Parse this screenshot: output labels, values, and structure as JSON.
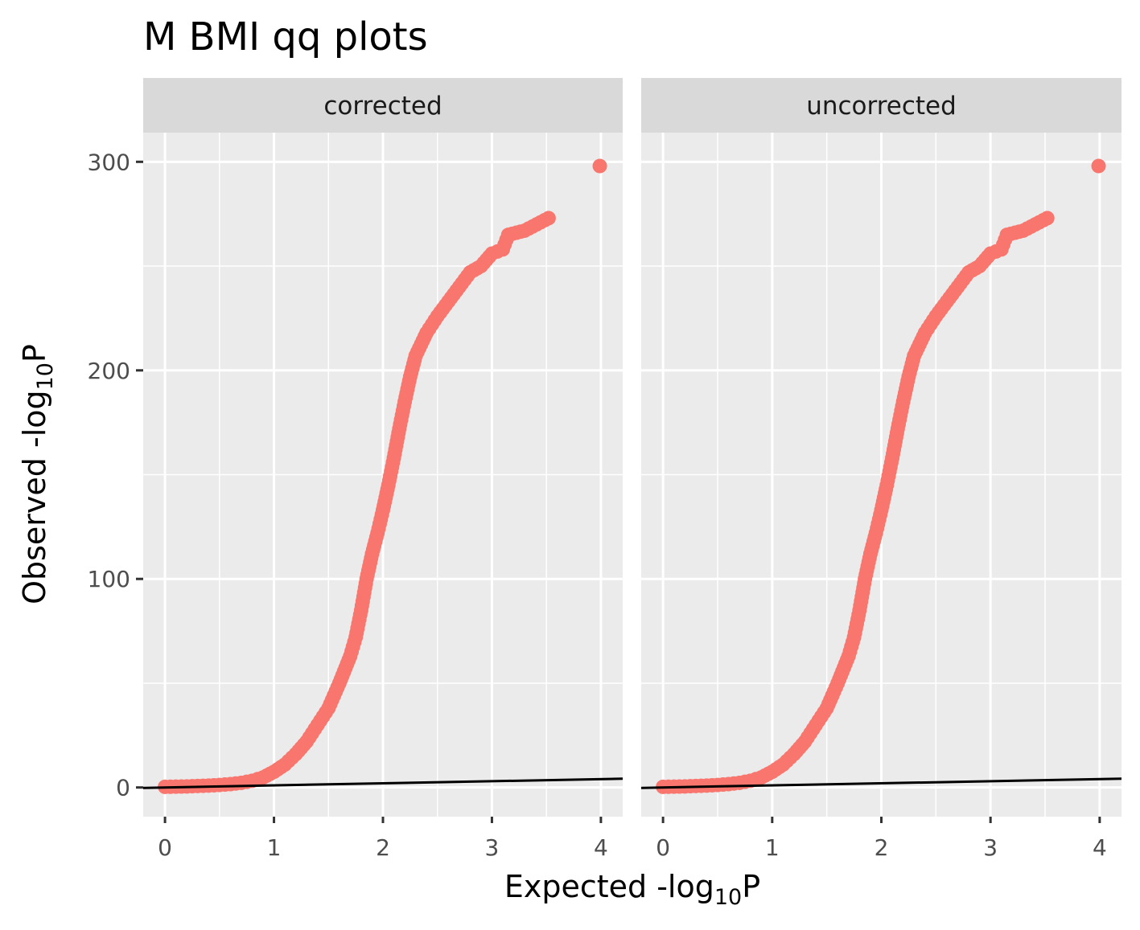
{
  "chart_data": {
    "type": "scatter",
    "title": "M BMI qq plots",
    "xlabel": {
      "main": "Expected -log",
      "sub": "10",
      "tail": "P"
    },
    "ylabel": {
      "main": "Observed -log",
      "sub": "10",
      "tail": "P"
    },
    "xlim": [
      -0.2,
      4.2
    ],
    "ylim": [
      -14,
      314
    ],
    "x_ticks": [
      0,
      1,
      2,
      3,
      4
    ],
    "x_tick_labels": [
      "0",
      "1",
      "2",
      "3",
      "4"
    ],
    "y_ticks": [
      0,
      100,
      200,
      300
    ],
    "y_tick_labels": [
      "0",
      "100",
      "200",
      "300"
    ],
    "grid": true,
    "legend": "none",
    "reference_line": {
      "intercept": 0,
      "slope": 1,
      "color": "#000000"
    },
    "point_color": "#F8766D",
    "panels": [
      {
        "name": "corrected",
        "points": [
          [
            0.0,
            0.3
          ],
          [
            0.1,
            0.4
          ],
          [
            0.2,
            0.5
          ],
          [
            0.3,
            0.7
          ],
          [
            0.4,
            0.9
          ],
          [
            0.5,
            1.2
          ],
          [
            0.6,
            1.6
          ],
          [
            0.7,
            2.2
          ],
          [
            0.8,
            3.2
          ],
          [
            0.9,
            4.8
          ],
          [
            1.0,
            7.5
          ],
          [
            1.1,
            11
          ],
          [
            1.2,
            16
          ],
          [
            1.3,
            22
          ],
          [
            1.4,
            30
          ],
          [
            1.5,
            38
          ],
          [
            1.6,
            50
          ],
          [
            1.7,
            63
          ],
          [
            1.75,
            72
          ],
          [
            1.8,
            85
          ],
          [
            1.85,
            100
          ],
          [
            1.9,
            112
          ],
          [
            1.95,
            122
          ],
          [
            2.0,
            133
          ],
          [
            2.05,
            145
          ],
          [
            2.1,
            158
          ],
          [
            2.15,
            172
          ],
          [
            2.2,
            185
          ],
          [
            2.25,
            197
          ],
          [
            2.3,
            207
          ],
          [
            2.4,
            218
          ],
          [
            2.5,
            226
          ],
          [
            2.6,
            233
          ],
          [
            2.7,
            240
          ],
          [
            2.8,
            247
          ],
          [
            2.9,
            250
          ],
          [
            3.0,
            256
          ],
          [
            3.1,
            258
          ],
          [
            3.15,
            265
          ],
          [
            3.3,
            267
          ],
          [
            3.52,
            273
          ],
          [
            3.99,
            298
          ]
        ]
      },
      {
        "name": "uncorrected",
        "points": [
          [
            0.0,
            0.3
          ],
          [
            0.1,
            0.4
          ],
          [
            0.2,
            0.5
          ],
          [
            0.3,
            0.7
          ],
          [
            0.4,
            0.9
          ],
          [
            0.5,
            1.2
          ],
          [
            0.6,
            1.6
          ],
          [
            0.7,
            2.2
          ],
          [
            0.8,
            3.2
          ],
          [
            0.9,
            4.8
          ],
          [
            1.0,
            7.5
          ],
          [
            1.1,
            11
          ],
          [
            1.2,
            16
          ],
          [
            1.3,
            22
          ],
          [
            1.4,
            30
          ],
          [
            1.5,
            38
          ],
          [
            1.6,
            50
          ],
          [
            1.7,
            63
          ],
          [
            1.75,
            72
          ],
          [
            1.8,
            85
          ],
          [
            1.85,
            100
          ],
          [
            1.9,
            112
          ],
          [
            1.95,
            122
          ],
          [
            2.0,
            133
          ],
          [
            2.05,
            145
          ],
          [
            2.1,
            158
          ],
          [
            2.15,
            172
          ],
          [
            2.2,
            185
          ],
          [
            2.25,
            197
          ],
          [
            2.3,
            207
          ],
          [
            2.4,
            218
          ],
          [
            2.5,
            226
          ],
          [
            2.6,
            233
          ],
          [
            2.7,
            240
          ],
          [
            2.8,
            247
          ],
          [
            2.9,
            250
          ],
          [
            3.0,
            256
          ],
          [
            3.1,
            258
          ],
          [
            3.15,
            265
          ],
          [
            3.3,
            267
          ],
          [
            3.52,
            273
          ],
          [
            3.99,
            298
          ]
        ]
      }
    ]
  }
}
